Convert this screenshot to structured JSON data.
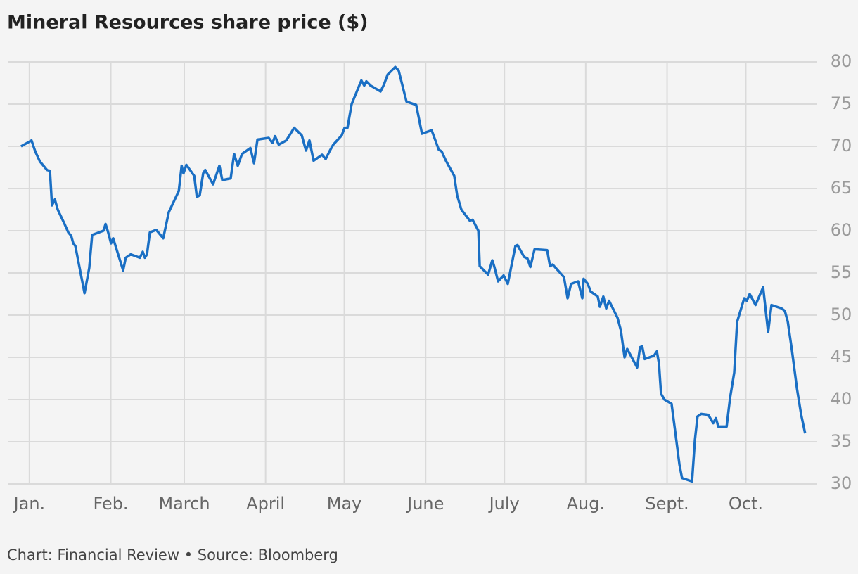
{
  "chart_data": {
    "type": "line",
    "title": "Mineral Resources share price ($)",
    "source": "Chart: Financial Review • Source: Bloomberg",
    "x": [
      -3.2,
      0.8,
      2.2,
      4,
      6.7,
      7.8,
      8.6,
      9.7,
      10.8,
      13.4,
      14.8,
      15.9,
      16.7,
      17.5,
      21,
      22.8,
      23.9,
      28.2,
      29,
      30,
      31.1,
      31.9,
      35.7,
      36.7,
      38.6,
      42.1,
      43.2,
      44,
      44.8,
      45.9,
      48.3,
      51,
      53.1,
      56.9,
      58,
      58.7,
      59.8,
      62.8,
      63.8,
      64.9,
      66.2,
      67,
      70,
      72.4,
      73.5,
      76.7,
      78,
      79.4,
      80.2,
      81,
      84.2,
      85.6,
      86.9,
      91.2,
      92.6,
      93.6,
      95,
      97.9,
      99.5,
      100.9,
      103.8,
      105.4,
      106.7,
      108.3,
      111.5,
      112.9,
      114.5,
      115.8,
      119,
      120.1,
      121.2,
      122.8,
      126.5,
      127.6,
      128.4,
      130,
      133.8,
      135.1,
      136.5,
      139.4,
      140.7,
      143.7,
      147.4,
      149.6,
      153.3,
      156,
      157.1,
      158.7,
      161.9,
      163,
      164.6,
      167.8,
      168.9,
      171.1,
      171.6,
      174.8,
      176.4,
      177.2,
      178.6,
      180.7,
      182.3,
      185.2,
      186,
      188.5,
      189.8,
      190.9,
      192.5,
      197.3,
      198.4,
      199.4,
      203.7,
      205.1,
      206.4,
      209.1,
      210.7,
      211.2,
      212.8,
      213.9,
      216.6,
      217.4,
      218.7,
      219.8,
      220.9,
      224.1,
      225.4,
      226.8,
      227.8,
      231.6,
      232.7,
      233.5,
      234.5,
      238,
      239.1,
      239.9,
      240.7,
      242,
      244.7,
      246.1,
      247.7,
      248.7,
      252.5,
      253.6,
      254.6,
      256,
      258.7,
      260.6,
      261.6,
      262.5,
      265.7,
      267,
      268.6,
      269.7,
      272.4,
      273.4,
      274.5,
      276.7,
      279.6,
      281.5,
      282.8,
      286.6,
      287.9,
      289,
      290.6,
      292.5,
      294.1,
      295.6
    ],
    "series": [
      {
        "color": "#1a6fc4",
        "values": [
          70,
          70.7,
          69.4,
          68.2,
          67.2,
          67.1,
          63,
          63.7,
          62.5,
          60.8,
          59.8,
          59.4,
          58.5,
          58.2,
          52.6,
          55.6,
          59.5,
          60,
          60.8,
          59.8,
          58.5,
          59.1,
          55.3,
          56.8,
          57.2,
          56.8,
          57.5,
          56.8,
          57.2,
          59.8,
          60.1,
          59.1,
          62.2,
          64.7,
          67.7,
          66.8,
          67.8,
          66.5,
          64,
          64.2,
          66.8,
          67.2,
          65.5,
          67.7,
          66,
          66.2,
          69.1,
          67.7,
          68.4,
          69.1,
          69.8,
          68,
          70.8,
          71,
          70.4,
          71.2,
          70.2,
          70.7,
          71.5,
          72.2,
          71.3,
          69.5,
          70.7,
          68.3,
          69,
          68.5,
          69.5,
          70.2,
          71.3,
          72.2,
          72.2,
          75,
          77.8,
          77.2,
          77.7,
          77.2,
          76.5,
          77.3,
          78.5,
          79.4,
          79,
          75.3,
          74.9,
          71.5,
          71.9,
          69.6,
          69.4,
          68.3,
          66.5,
          64.2,
          62.5,
          61.2,
          61.3,
          60,
          55.8,
          54.8,
          56.5,
          55.7,
          54,
          54.7,
          53.7,
          58.2,
          58.3,
          56.9,
          56.7,
          55.7,
          57.8,
          57.7,
          55.8,
          56,
          54.5,
          52,
          53.7,
          54,
          52,
          54.3,
          53.7,
          52.8,
          52.2,
          51,
          52.2,
          50.8,
          51.7,
          49.7,
          48.2,
          45,
          46,
          43.8,
          46.2,
          46.3,
          44.8,
          45.2,
          45.7,
          44.3,
          40.7,
          40,
          39.5,
          36.2,
          32.3,
          30.7,
          30.3,
          35.2,
          38,
          38.3,
          38.2,
          37.2,
          37.8,
          36.8,
          36.8,
          40.2,
          43.2,
          49.2,
          52,
          51.7,
          52.5,
          51.2,
          53.3,
          48,
          51.2,
          50.8,
          50.5,
          49.2,
          45.8,
          41.3,
          38.2,
          36
        ]
      }
    ],
    "xlim": [
      -8,
      297
    ],
    "xticks": [
      {
        "value": 0,
        "label": "Jan."
      },
      {
        "value": 31,
        "label": "Feb."
      },
      {
        "value": 59,
        "label": "March"
      },
      {
        "value": 90,
        "label": "April"
      },
      {
        "value": 120,
        "label": "May"
      },
      {
        "value": 151,
        "label": "June"
      },
      {
        "value": 181,
        "label": "July"
      },
      {
        "value": 212,
        "label": "Aug."
      },
      {
        "value": 243,
        "label": "Sept."
      },
      {
        "value": 273,
        "label": "Oct."
      }
    ],
    "ylim": [
      30,
      80
    ],
    "yticks": [
      30,
      35,
      40,
      45,
      50,
      55,
      60,
      65,
      70,
      75,
      80
    ],
    "grid": true
  }
}
